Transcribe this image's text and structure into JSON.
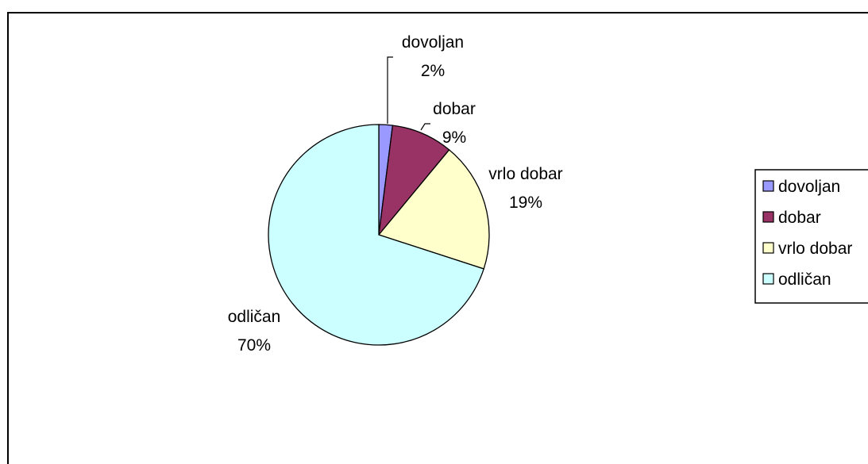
{
  "chart_data": {
    "type": "pie",
    "title": "",
    "categories": [
      "dovoljan",
      "dobar",
      "vrlo dobar",
      "odličan"
    ],
    "values": [
      2,
      9,
      19,
      70
    ],
    "value_labels": [
      "2%",
      "9%",
      "19%",
      "70%"
    ],
    "colors": [
      "#9999ff",
      "#993366",
      "#ffffcc",
      "#ccffff"
    ],
    "start_angle_deg": 0,
    "direction": "clockwise",
    "legend": {
      "position": "right",
      "entries": [
        "dovoljan",
        "dobar",
        "vrlo dobar",
        "odličan"
      ]
    }
  }
}
